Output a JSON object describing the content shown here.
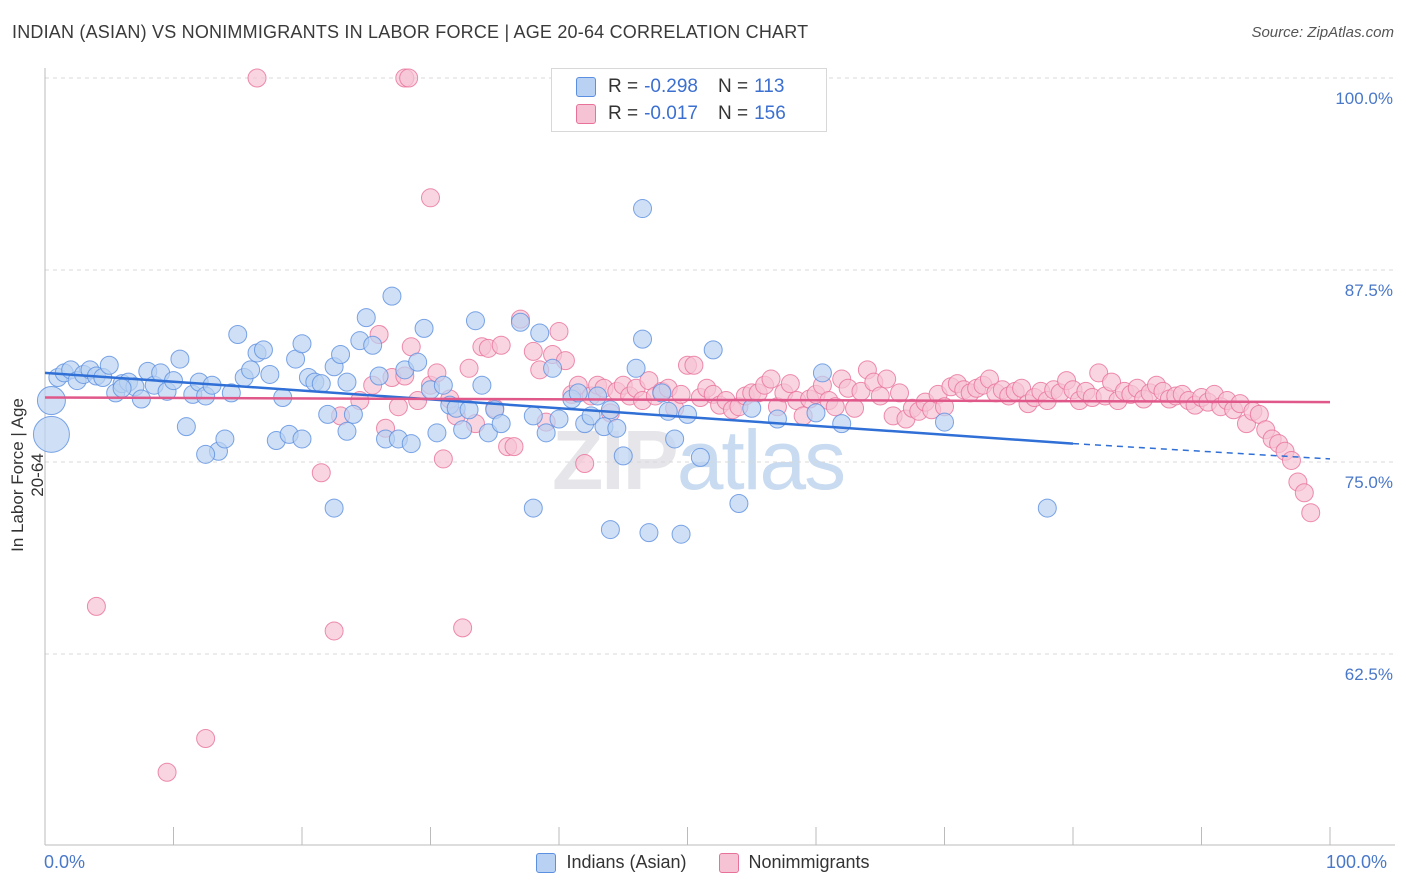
{
  "title": "INDIAN (ASIAN) VS NONIMMIGRANTS IN LABOR FORCE | AGE 20-64 CORRELATION CHART",
  "source": "Source: ZipAtlas.com",
  "watermark": {
    "zip": "ZIP",
    "atlas": "atlas"
  },
  "legend": {
    "rows": [
      {
        "r_label": "R =",
        "r_value": "-0.298",
        "n_label": "N =",
        "n_value": "113"
      },
      {
        "r_label": "R =",
        "r_value": "-0.017",
        "n_label": "N =",
        "n_value": "156"
      }
    ]
  },
  "bottom_legend": [
    "Indians (Asian)",
    "Nonimmigrants"
  ],
  "colors": {
    "blue": "#5b8fe0",
    "blue_fill": "#b9d1f2",
    "pink": "#e8719a",
    "pink_fill": "#f6c3d4",
    "tick": "#4a78c8"
  },
  "chart_data": {
    "type": "scatter",
    "title": "INDIAN (ASIAN) VS NONIMMIGRANTS IN LABOR FORCE | AGE 20-64 CORRELATION CHART",
    "xlabel": "",
    "ylabel": "In Labor Force | Age 20-64",
    "xlim": [
      0,
      100
    ],
    "ylim": [
      50,
      102
    ],
    "x_tick_labels": [
      "0.0%",
      "100.0%"
    ],
    "y_ticks": [
      62.5,
      75.0,
      87.5,
      100.0
    ],
    "y_tick_labels": [
      "62.5%",
      "75.0%",
      "87.5%",
      "100.0%"
    ],
    "grid": "horizontal dashed",
    "legend_position": "top-center",
    "series": [
      {
        "name": "Indians (Asian)",
        "r": -0.298,
        "n": 113,
        "trend": {
          "x0": 0,
          "y0": 80.8,
          "x1": 80,
          "y1": 76.2,
          "dashed_to_x": 100,
          "dashed_to_y": 75.2
        },
        "points": [
          [
            0.5,
            79.0
          ],
          [
            0.5,
            76.8
          ],
          [
            1,
            80.5
          ],
          [
            1.5,
            80.8
          ],
          [
            2,
            81.0
          ],
          [
            2.5,
            80.3
          ],
          [
            3,
            80.7
          ],
          [
            3.5,
            81.0
          ],
          [
            4,
            80.6
          ],
          [
            4.5,
            80.5
          ],
          [
            5,
            81.3
          ],
          [
            5.5,
            79.5
          ],
          [
            6,
            80.1
          ],
          [
            6.5,
            80.2
          ],
          [
            7,
            79.9
          ],
          [
            7.5,
            79.1
          ],
          [
            8,
            80.9
          ],
          [
            8.5,
            80.0
          ],
          [
            9,
            80.8
          ],
          [
            9.5,
            79.6
          ],
          [
            10,
            80.3
          ],
          [
            10.5,
            81.7
          ],
          [
            11,
            77.3
          ],
          [
            11.5,
            79.4
          ],
          [
            12,
            80.2
          ],
          [
            12.5,
            79.3
          ],
          [
            13,
            80.0
          ],
          [
            13.5,
            75.7
          ],
          [
            14,
            76.5
          ],
          [
            14.5,
            79.5
          ],
          [
            15,
            83.3
          ],
          [
            15.5,
            80.5
          ],
          [
            16,
            81.0
          ],
          [
            16.5,
            82.1
          ],
          [
            17,
            82.3
          ],
          [
            17.5,
            80.7
          ],
          [
            18,
            76.4
          ],
          [
            18.5,
            79.2
          ],
          [
            19,
            76.8
          ],
          [
            19.5,
            81.7
          ],
          [
            20,
            82.7
          ],
          [
            20.5,
            80.5
          ],
          [
            21,
            80.2
          ],
          [
            21.5,
            80.1
          ],
          [
            22,
            78.1
          ],
          [
            22.5,
            81.2
          ],
          [
            23,
            82.0
          ],
          [
            23.5,
            80.2
          ],
          [
            24,
            78.1
          ],
          [
            24.5,
            82.9
          ],
          [
            25,
            84.4
          ],
          [
            25.5,
            82.6
          ],
          [
            26,
            80.6
          ],
          [
            26.5,
            76.5
          ],
          [
            27,
            85.8
          ],
          [
            27.5,
            76.5
          ],
          [
            28,
            81.0
          ],
          [
            28.5,
            76.2
          ],
          [
            29,
            81.5
          ],
          [
            29.5,
            83.7
          ],
          [
            30,
            79.7
          ],
          [
            30.5,
            76.9
          ],
          [
            31,
            80.0
          ],
          [
            31.5,
            78.7
          ],
          [
            32,
            78.5
          ],
          [
            32.5,
            77.1
          ],
          [
            33,
            78.4
          ],
          [
            33.5,
            84.2
          ],
          [
            34,
            80.0
          ],
          [
            34.5,
            76.9
          ],
          [
            35,
            78.4
          ],
          [
            35.5,
            77.5
          ],
          [
            37,
            84.1
          ],
          [
            38,
            78.0
          ],
          [
            38.5,
            83.4
          ],
          [
            39,
            76.9
          ],
          [
            39.5,
            81.1
          ],
          [
            40,
            77.8
          ],
          [
            41,
            79.1
          ],
          [
            41.5,
            79.5
          ],
          [
            42,
            77.5
          ],
          [
            42.5,
            78.0
          ],
          [
            43,
            79.3
          ],
          [
            43.5,
            77.3
          ],
          [
            44,
            78.4
          ],
          [
            44.5,
            77.2
          ],
          [
            45,
            75.4
          ],
          [
            46,
            81.1
          ],
          [
            46.5,
            83.0
          ],
          [
            48,
            79.5
          ],
          [
            48.5,
            78.3
          ],
          [
            49,
            76.5
          ],
          [
            50,
            78.1
          ],
          [
            51,
            75.3
          ],
          [
            52,
            82.3
          ],
          [
            54,
            72.3
          ],
          [
            55,
            78.5
          ],
          [
            57,
            77.8
          ],
          [
            60,
            78.2
          ],
          [
            60.5,
            80.8
          ],
          [
            62,
            77.5
          ],
          [
            70,
            77.6
          ],
          [
            78,
            72.0
          ],
          [
            47,
            70.4
          ],
          [
            49.5,
            70.3
          ],
          [
            44,
            70.6
          ],
          [
            46.5,
            91.5
          ],
          [
            38,
            72.0
          ],
          [
            23.5,
            77.0
          ],
          [
            22.5,
            72.0
          ],
          [
            6,
            79.8
          ],
          [
            12.5,
            75.5
          ],
          [
            20,
            76.5
          ]
        ]
      },
      {
        "name": "Nonimmigrants",
        "r": -0.017,
        "n": 156,
        "trend": {
          "x0": 0,
          "y0": 79.2,
          "x1": 100,
          "y1": 78.9
        },
        "points": [
          [
            16.5,
            100.0
          ],
          [
            28,
            100.0
          ],
          [
            28.3,
            100.0
          ],
          [
            30,
            92.2
          ],
          [
            4,
            65.6
          ],
          [
            12.5,
            57.0
          ],
          [
            9.5,
            54.8
          ],
          [
            22.5,
            64.0
          ],
          [
            32.5,
            64.2
          ],
          [
            21.5,
            74.3
          ],
          [
            23,
            78.0
          ],
          [
            24.5,
            79.0
          ],
          [
            25.5,
            80.0
          ],
          [
            26,
            83.3
          ],
          [
            26.5,
            77.2
          ],
          [
            27,
            80.5
          ],
          [
            27.5,
            78.6
          ],
          [
            28,
            80.6
          ],
          [
            28.5,
            82.5
          ],
          [
            29,
            79.0
          ],
          [
            30,
            80.0
          ],
          [
            30.5,
            80.8
          ],
          [
            31,
            75.2
          ],
          [
            31.5,
            79.1
          ],
          [
            32,
            78.0
          ],
          [
            33,
            81.1
          ],
          [
            33.5,
            77.5
          ],
          [
            34,
            82.5
          ],
          [
            34.5,
            82.4
          ],
          [
            35,
            78.5
          ],
          [
            35.5,
            82.6
          ],
          [
            36,
            76.0
          ],
          [
            36.5,
            76.0
          ],
          [
            37,
            84.3
          ],
          [
            38,
            82.2
          ],
          [
            38.5,
            81.0
          ],
          [
            39,
            77.6
          ],
          [
            39.5,
            82.0
          ],
          [
            40,
            83.5
          ],
          [
            40.5,
            81.6
          ],
          [
            41,
            79.4
          ],
          [
            41.5,
            80.0
          ],
          [
            42,
            74.9
          ],
          [
            42.5,
            79.3
          ],
          [
            43,
            80.0
          ],
          [
            43.5,
            79.8
          ],
          [
            44,
            78.2
          ],
          [
            44.5,
            79.6
          ],
          [
            45,
            80.0
          ],
          [
            45.5,
            79.3
          ],
          [
            46,
            79.8
          ],
          [
            46.5,
            79.0
          ],
          [
            47,
            80.3
          ],
          [
            47.5,
            79.3
          ],
          [
            48,
            79.6
          ],
          [
            48.5,
            79.8
          ],
          [
            49,
            78.5
          ],
          [
            49.5,
            79.4
          ],
          [
            50,
            81.3
          ],
          [
            50.5,
            81.3
          ],
          [
            51,
            79.2
          ],
          [
            51.5,
            79.8
          ],
          [
            52,
            79.4
          ],
          [
            52.5,
            78.7
          ],
          [
            53,
            79.0
          ],
          [
            53.5,
            78.4
          ],
          [
            54,
            78.6
          ],
          [
            54.5,
            79.3
          ],
          [
            55,
            79.5
          ],
          [
            55.5,
            79.5
          ],
          [
            56,
            80.0
          ],
          [
            56.5,
            80.4
          ],
          [
            57,
            78.6
          ],
          [
            57.5,
            79.5
          ],
          [
            58,
            80.1
          ],
          [
            58.5,
            79.0
          ],
          [
            59,
            78.0
          ],
          [
            59.5,
            79.1
          ],
          [
            60,
            79.4
          ],
          [
            60.5,
            80.0
          ],
          [
            61,
            79.0
          ],
          [
            61.5,
            78.6
          ],
          [
            62,
            80.4
          ],
          [
            62.5,
            79.8
          ],
          [
            63,
            78.5
          ],
          [
            63.5,
            79.6
          ],
          [
            64,
            81.0
          ],
          [
            64.5,
            80.2
          ],
          [
            65,
            79.3
          ],
          [
            65.5,
            80.4
          ],
          [
            66,
            78.0
          ],
          [
            66.5,
            79.5
          ],
          [
            67,
            77.8
          ],
          [
            67.5,
            78.5
          ],
          [
            68,
            78.3
          ],
          [
            68.5,
            78.9
          ],
          [
            69,
            78.4
          ],
          [
            69.5,
            79.4
          ],
          [
            70,
            78.6
          ],
          [
            70.5,
            79.9
          ],
          [
            71,
            80.1
          ],
          [
            71.5,
            79.7
          ],
          [
            72,
            79.5
          ],
          [
            72.5,
            79.8
          ],
          [
            73,
            80.0
          ],
          [
            73.5,
            80.4
          ],
          [
            74,
            79.5
          ],
          [
            74.5,
            79.7
          ],
          [
            75,
            79.3
          ],
          [
            75.5,
            79.6
          ],
          [
            76,
            79.8
          ],
          [
            76.5,
            78.8
          ],
          [
            77,
            79.2
          ],
          [
            77.5,
            79.6
          ],
          [
            78,
            79.0
          ],
          [
            78.5,
            79.7
          ],
          [
            79,
            79.5
          ],
          [
            79.5,
            80.3
          ],
          [
            80,
            79.7
          ],
          [
            80.5,
            79.0
          ],
          [
            81,
            79.6
          ],
          [
            81.5,
            79.2
          ],
          [
            82,
            80.8
          ],
          [
            82.5,
            79.3
          ],
          [
            83,
            80.2
          ],
          [
            83.5,
            79.0
          ],
          [
            84,
            79.6
          ],
          [
            84.5,
            79.4
          ],
          [
            85,
            79.8
          ],
          [
            85.5,
            79.1
          ],
          [
            86,
            79.5
          ],
          [
            86.5,
            80.0
          ],
          [
            87,
            79.6
          ],
          [
            87.5,
            79.1
          ],
          [
            88,
            79.3
          ],
          [
            88.5,
            79.4
          ],
          [
            89,
            79.0
          ],
          [
            89.5,
            78.7
          ],
          [
            90,
            79.2
          ],
          [
            90.5,
            78.9
          ],
          [
            91,
            79.4
          ],
          [
            91.5,
            78.6
          ],
          [
            92,
            79.0
          ],
          [
            92.5,
            78.4
          ],
          [
            93,
            78.8
          ],
          [
            93.5,
            77.5
          ],
          [
            94,
            78.3
          ],
          [
            94.5,
            78.1
          ],
          [
            95,
            77.1
          ],
          [
            95.5,
            76.5
          ],
          [
            96,
            76.2
          ],
          [
            96.5,
            75.7
          ],
          [
            97,
            75.1
          ],
          [
            97.5,
            73.7
          ],
          [
            98,
            73.0
          ],
          [
            98.5,
            71.7
          ]
        ]
      }
    ]
  }
}
